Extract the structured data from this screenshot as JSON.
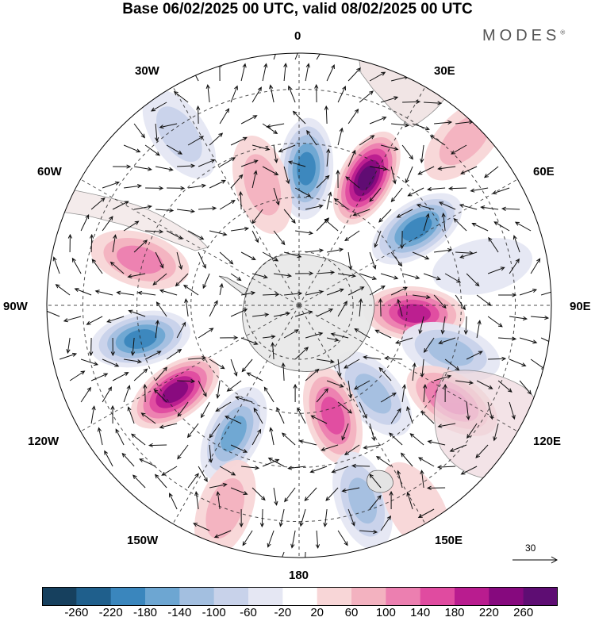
{
  "title": "Base 06/02/2025 00 UTC, valid 08/02/2025 00 UTC",
  "brand": {
    "name": "MODES",
    "mark": "®"
  },
  "longitude_labels": {
    "top": "0",
    "bottom": "180",
    "left": "90W",
    "right": "90E",
    "upper_left_30": "30W",
    "upper_left_60": "60W",
    "upper_right_30": "30E",
    "upper_right_60": "60E",
    "lower_left_120": "120W",
    "lower_left_150": "150W",
    "lower_right_120": "120E",
    "lower_right_150": "150E"
  },
  "reference_vector": {
    "label": "30"
  },
  "colorbar": {
    "levels": [
      -260,
      -220,
      -180,
      -140,
      -100,
      -60,
      -20,
      20,
      60,
      100,
      140,
      180,
      220,
      260
    ],
    "tick_labels": [
      "-260",
      "-220",
      "-180",
      "-140",
      "-100",
      "-60",
      "-20",
      "20",
      "60",
      "100",
      "140",
      "180",
      "220",
      "260"
    ],
    "colors": [
      "#16405e",
      "#1f5f8c",
      "#3a86bd",
      "#6da6d2",
      "#a3bfe0",
      "#c8d2ea",
      "#e5e7f3",
      "#ffffff",
      "#f8d6d7",
      "#f3b2c0",
      "#ec7fb0",
      "#e04ba0",
      "#b91c8f",
      "#86097e",
      "#5e0d73"
    ]
  },
  "anomaly_centers": [
    {
      "lon": 3,
      "lat": -52,
      "value": -200
    },
    {
      "lon": 28,
      "lat": -50,
      "value": 260
    },
    {
      "lon": 57,
      "lat": -51,
      "value": -200
    },
    {
      "lon": 94,
      "lat": -58,
      "value": 180
    },
    {
      "lon": 107,
      "lat": -46,
      "value": -120
    },
    {
      "lon": 122,
      "lat": -40,
      "value": 140
    },
    {
      "lon": 140,
      "lat": -58,
      "value": -120
    },
    {
      "lon": 163,
      "lat": -58,
      "value": 160
    },
    {
      "lon": 162,
      "lat": -33,
      "value": -130
    },
    {
      "lon": -153,
      "lat": -50,
      "value": -140
    },
    {
      "lon": -125,
      "lat": -48,
      "value": 220
    },
    {
      "lon": -102,
      "lat": -45,
      "value": -180
    },
    {
      "lon": -74,
      "lat": -44,
      "value": 120
    },
    {
      "lon": -17,
      "lat": -55,
      "value": 90
    },
    {
      "lon": -160,
      "lat": -30,
      "value": 80
    },
    {
      "lon": 45,
      "lat": -25,
      "value": 60
    },
    {
      "lon": -35,
      "lat": -32,
      "value": -60
    },
    {
      "lon": 78,
      "lat": -38,
      "value": -50
    },
    {
      "lon": 150,
      "lat": -25,
      "value": 40
    }
  ]
}
